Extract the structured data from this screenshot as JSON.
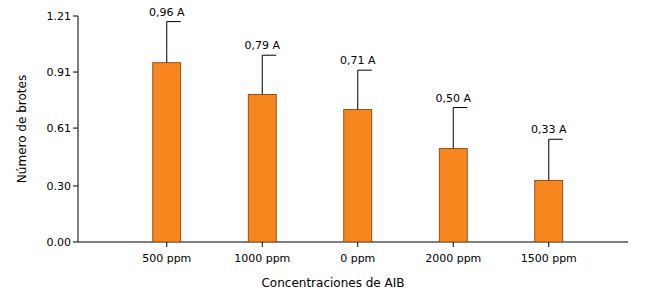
{
  "chart_data": {
    "type": "bar",
    "x_label": "Concentraciones de AIB",
    "y_label": "Número de brotes",
    "categories": [
      "500 ppm",
      "1000 ppm",
      "0 ppm",
      "2000 ppm",
      "1500 ppm"
    ],
    "values": [
      0.96,
      0.79,
      0.71,
      0.5,
      0.33
    ],
    "value_labels": [
      "0,96 A",
      "0,79 A",
      "0,71 A",
      "0,50 A",
      "0,33 A"
    ],
    "errors": [
      0.22,
      0.21,
      0.21,
      0.22,
      0.22
    ],
    "color": "#f7861f",
    "data_labels": true,
    "grid": false,
    "ylim": [
      0,
      1.21
    ],
    "yticks": [
      {
        "value": 0,
        "label": "0.00"
      },
      {
        "value": 0.3,
        "label": "0.30"
      },
      {
        "value": 0.61,
        "label": "0.61"
      },
      {
        "value": 0.91,
        "label": "0.91"
      },
      {
        "value": 1.21,
        "label": "1.21"
      }
    ]
  }
}
